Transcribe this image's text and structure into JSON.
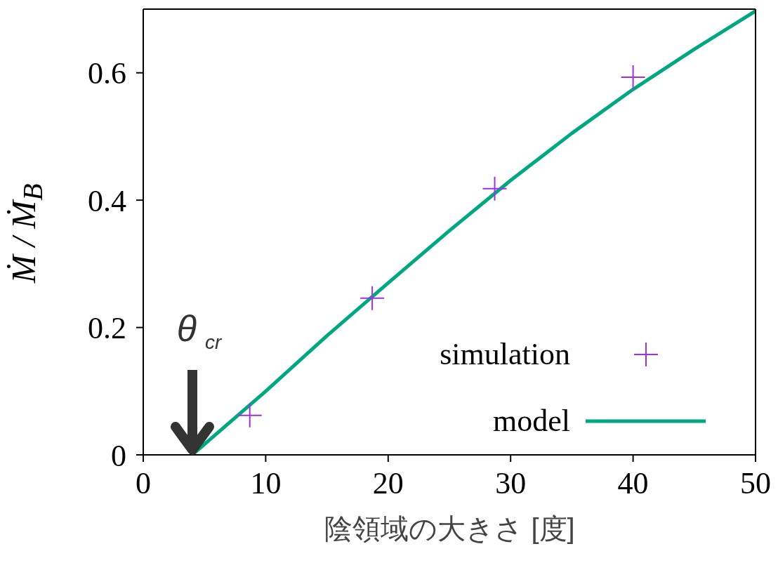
{
  "chart_data": {
    "type": "scatter",
    "xlabel": "陰領域の大きさ [度]",
    "ylabel": "Ṁ / Ṁ$_{B}$",
    "xlim": [
      0,
      50
    ],
    "ylim": [
      0,
      0.7
    ],
    "xticks": [
      0,
      10,
      20,
      30,
      40,
      50
    ],
    "yticks": [
      0,
      0.2,
      0.4,
      0.6
    ],
    "legend": "bottom right",
    "series": [
      {
        "name": "simulation",
        "marker": "cross",
        "color": "#a030e0",
        "x": [
          8.7,
          18.7,
          28.7,
          40.0
        ],
        "values": [
          0.062,
          0.246,
          0.418,
          0.593
        ]
      },
      {
        "name": "model",
        "type": "line",
        "marker": "none",
        "line_style": "solid",
        "color": "#00a882",
        "x": [
          4.0,
          10,
          15,
          20,
          25,
          30,
          35,
          40,
          45,
          50
        ],
        "values": [
          0,
          0.1,
          0.187,
          0.27,
          0.352,
          0.431,
          0.505,
          0.574,
          0.637,
          0.697
        ]
      }
    ],
    "annotations": [
      {
        "text": "θ$_{cr}$",
        "x": 4.0,
        "y": 0
      }
    ]
  }
}
